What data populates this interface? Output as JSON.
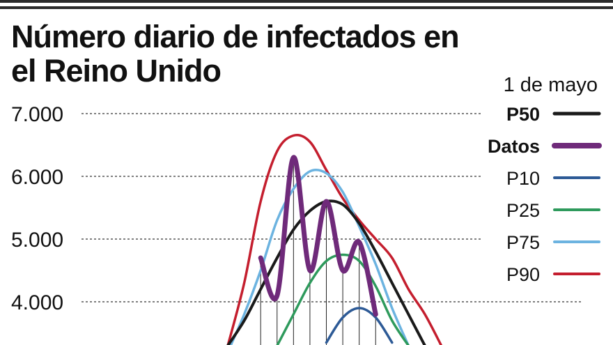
{
  "chart_data": {
    "type": "line",
    "title": "Número diario de infectados en el Reino Unido",
    "annotation": "1 de mayo",
    "xlabel": "",
    "ylabel": "",
    "yticks": [
      "7.000",
      "6.000",
      "5.000",
      "4.000"
    ],
    "ylim": [
      3300,
      7200
    ],
    "x": [
      0,
      1,
      2,
      3,
      4,
      5,
      6,
      7,
      8,
      9,
      10,
      11,
      12,
      13,
      14,
      15,
      16
    ],
    "xlim": [
      -0.6,
      16.6
    ],
    "grid": "horizontal dashed",
    "legend_position": "right",
    "series": [
      {
        "name": "P50",
        "color": "#1a1a1a",
        "bold": true,
        "values": [
          3300,
          3700,
          4200,
          4700,
          5150,
          5450,
          5600,
          5550,
          5250,
          4800,
          4300,
          3800,
          3300,
          null,
          null,
          null,
          null
        ]
      },
      {
        "name": "Datos",
        "color": "#6f2a7a",
        "bold": true,
        "values": [
          null,
          null,
          4700,
          4100,
          6300,
          4500,
          5600,
          4500,
          4950,
          3800,
          null,
          null,
          null,
          null,
          null,
          null,
          null
        ]
      },
      {
        "name": "P10",
        "color": "#2d5a96",
        "bold": false,
        "values": [
          null,
          null,
          null,
          null,
          null,
          null,
          3350,
          3750,
          3900,
          3750,
          3350,
          null,
          null,
          null,
          null,
          null,
          null
        ]
      },
      {
        "name": "P25",
        "color": "#2e9a5c",
        "bold": false,
        "values": [
          null,
          null,
          null,
          3300,
          3800,
          4300,
          4650,
          4750,
          4650,
          4250,
          3700,
          3300,
          null,
          null,
          null,
          null,
          null
        ]
      },
      {
        "name": "P75",
        "color": "#6cb3e0",
        "bold": false,
        "values": [
          3200,
          3800,
          4500,
          5300,
          5800,
          6080,
          6050,
          5750,
          5200,
          4600,
          3900,
          3300,
          null,
          null,
          null,
          null,
          null
        ]
      },
      {
        "name": "P90",
        "color": "#c41e2e",
        "bold": false,
        "values": [
          3300,
          4300,
          5600,
          6400,
          6650,
          6550,
          6100,
          5650,
          5300,
          5000,
          4700,
          4200,
          3800,
          3300,
          null,
          null,
          null
        ]
      }
    ]
  }
}
